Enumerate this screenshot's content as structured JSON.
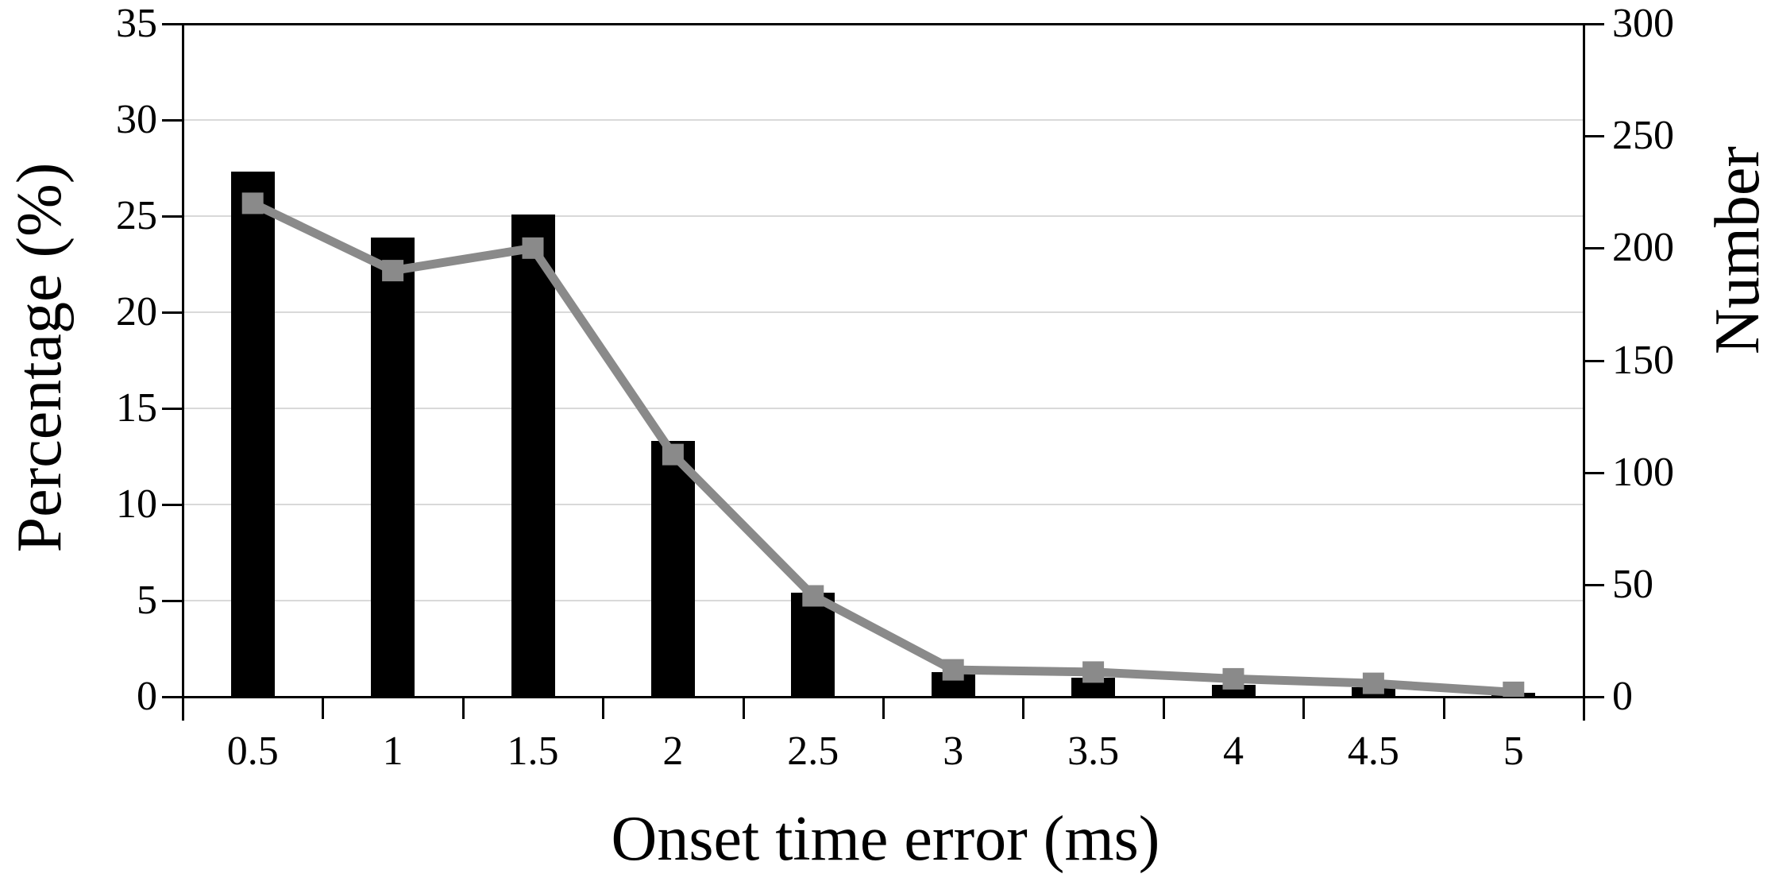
{
  "chart_data": {
    "type": "bar+line combo (histogram with overlaid line)",
    "categories": [
      "0.5",
      "1",
      "1.5",
      "2",
      "2.5",
      "3",
      "3.5",
      "4",
      "4.5",
      "5"
    ],
    "series": [
      {
        "name": "Percentage",
        "type": "bar",
        "axis": "left",
        "color": "#000000",
        "values": [
          27.3,
          23.9,
          25.1,
          13.3,
          5.4,
          1.3,
          1.0,
          0.6,
          0.5,
          0.2
        ]
      },
      {
        "name": "Number",
        "type": "line",
        "axis": "right",
        "color": "#8a8a8a",
        "marker": "square",
        "values": [
          220,
          190,
          200,
          108,
          45,
          12,
          11,
          8,
          6,
          2
        ]
      }
    ],
    "left_axis": {
      "label": "Percentage (%)",
      "min": 0,
      "max": 35,
      "tick_step": 5,
      "tick_labels": [
        "0",
        "5",
        "10",
        "15",
        "20",
        "25",
        "30",
        "35"
      ]
    },
    "right_axis": {
      "label": "Number",
      "min": 0,
      "max": 300,
      "tick_step": 50,
      "tick_labels": [
        "0",
        "50",
        "100",
        "150",
        "200",
        "250",
        "300"
      ]
    },
    "x_axis": {
      "label": "Onset time error (ms)",
      "tick_labels": [
        "0.5",
        "1",
        "1.5",
        "2",
        "2.5",
        "3",
        "3.5",
        "4",
        "4.5",
        "5"
      ]
    },
    "legend": "none",
    "grid": "horizontal gridlines at every left-axis step (5)",
    "colors": {
      "background": "#ffffff",
      "gridline": "#d9d9d9",
      "frame": "#000000",
      "bar": "#000000",
      "line": "#8a8a8a"
    }
  }
}
